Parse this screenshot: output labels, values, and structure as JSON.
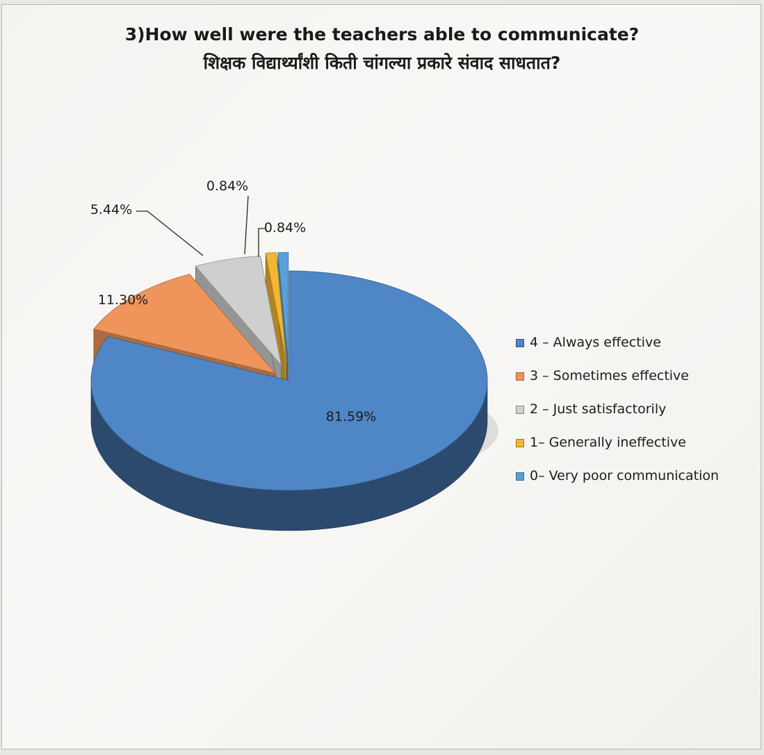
{
  "chart_data": {
    "type": "pie",
    "title": "3)How well were the teachers able to communicate?",
    "subtitle": "शिक्षक विद्यार्थ्यांशी किती चांगल्या प्रकारे संवाद साधतात?",
    "legend_position": "right",
    "three_d": true,
    "exploded": true,
    "slices": [
      {
        "label": "4 – Always effective",
        "value": 81.59,
        "value_label": "81.59%",
        "color": "#4f86c6"
      },
      {
        "label": "3 – Sometimes effective",
        "value": 11.3,
        "value_label": "11.30%",
        "color": "#ef955c"
      },
      {
        "label": "2 – Just satisfactorily",
        "value": 5.44,
        "value_label": "5.44%",
        "color": "#cfcfcf"
      },
      {
        "label": "1– Generally ineffective",
        "value": 0.84,
        "value_label": "0.84%",
        "color": "#f2b732"
      },
      {
        "label": "0– Very poor communication",
        "value": 0.84,
        "value_label": "0.84%",
        "color": "#5aa0db"
      }
    ]
  }
}
